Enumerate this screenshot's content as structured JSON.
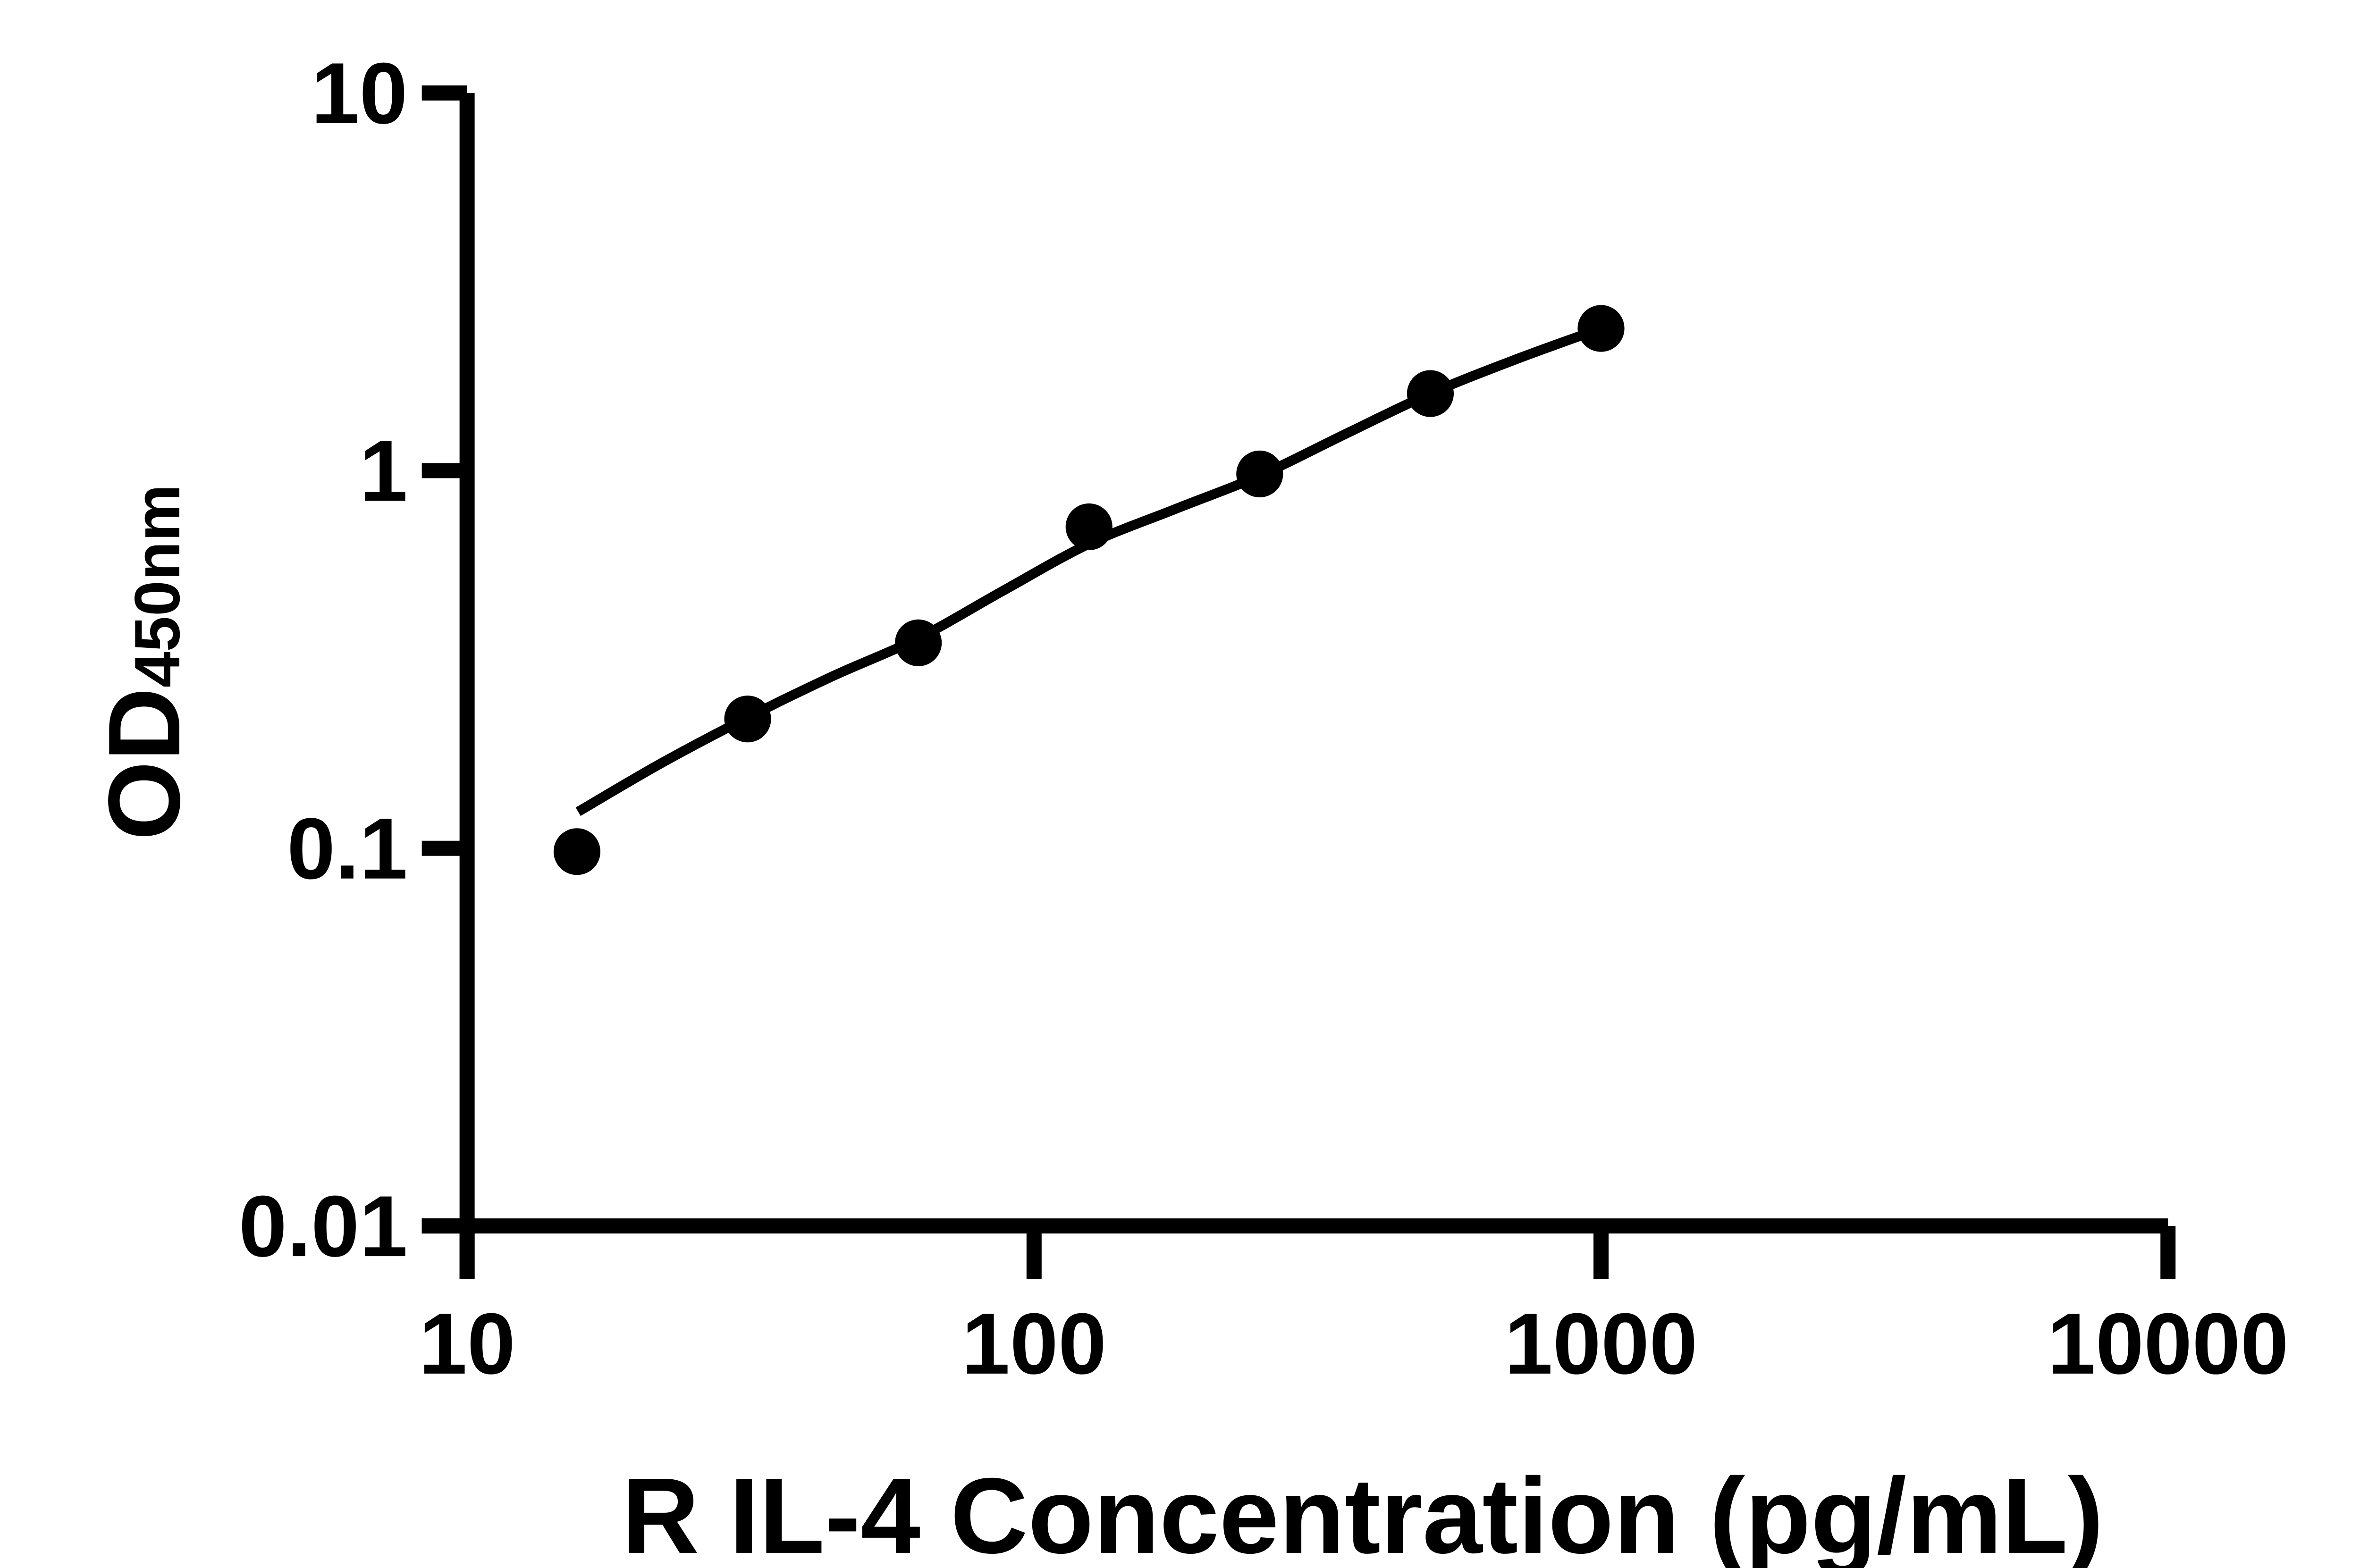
{
  "page": {
    "background_color": "#ffffff",
    "foreground_color": "#000000"
  },
  "chart_data": {
    "type": "scatter",
    "title": "",
    "xlabel": "R IL-4 Concentration (pg/mL)",
    "ylabel_base": "OD",
    "ylabel_sub": "450nm",
    "x_scale": "log",
    "y_scale": "log",
    "xlim": [
      10,
      10000
    ],
    "ylim": [
      0.01,
      10
    ],
    "grid": "off",
    "legend": "none",
    "x_ticks": [
      {
        "value": 10,
        "label": "10"
      },
      {
        "value": 100,
        "label": "100"
      },
      {
        "value": 1000,
        "label": "1000"
      },
      {
        "value": 10000,
        "label": "10000"
      }
    ],
    "y_ticks": [
      {
        "value": 0.01,
        "label": "0.01"
      },
      {
        "value": 0.1,
        "label": "0.1"
      },
      {
        "value": 1,
        "label": "1"
      },
      {
        "value": 10,
        "label": "10"
      }
    ],
    "series": [
      {
        "name": "standard-points",
        "marker": "filled-circle",
        "color": "#000000",
        "points": [
          {
            "x": 15.625,
            "y": 0.098
          },
          {
            "x": 31.25,
            "y": 0.22
          },
          {
            "x": 62.5,
            "y": 0.35
          },
          {
            "x": 125,
            "y": 0.71
          },
          {
            "x": 250,
            "y": 0.98
          },
          {
            "x": 500,
            "y": 1.6
          },
          {
            "x": 1000,
            "y": 2.38
          }
        ]
      }
    ],
    "fit_curve": {
      "name": "fitted-standard-curve",
      "color": "#000000",
      "points": [
        [
          15.7,
          0.125
        ],
        [
          22,
          0.168
        ],
        [
          31.25,
          0.222
        ],
        [
          44,
          0.285
        ],
        [
          62.5,
          0.36
        ],
        [
          88,
          0.48
        ],
        [
          125,
          0.64
        ],
        [
          177,
          0.79
        ],
        [
          250,
          0.97
        ],
        [
          354,
          1.25
        ],
        [
          500,
          1.6
        ],
        [
          707,
          1.97
        ],
        [
          1000,
          2.38
        ]
      ]
    }
  }
}
